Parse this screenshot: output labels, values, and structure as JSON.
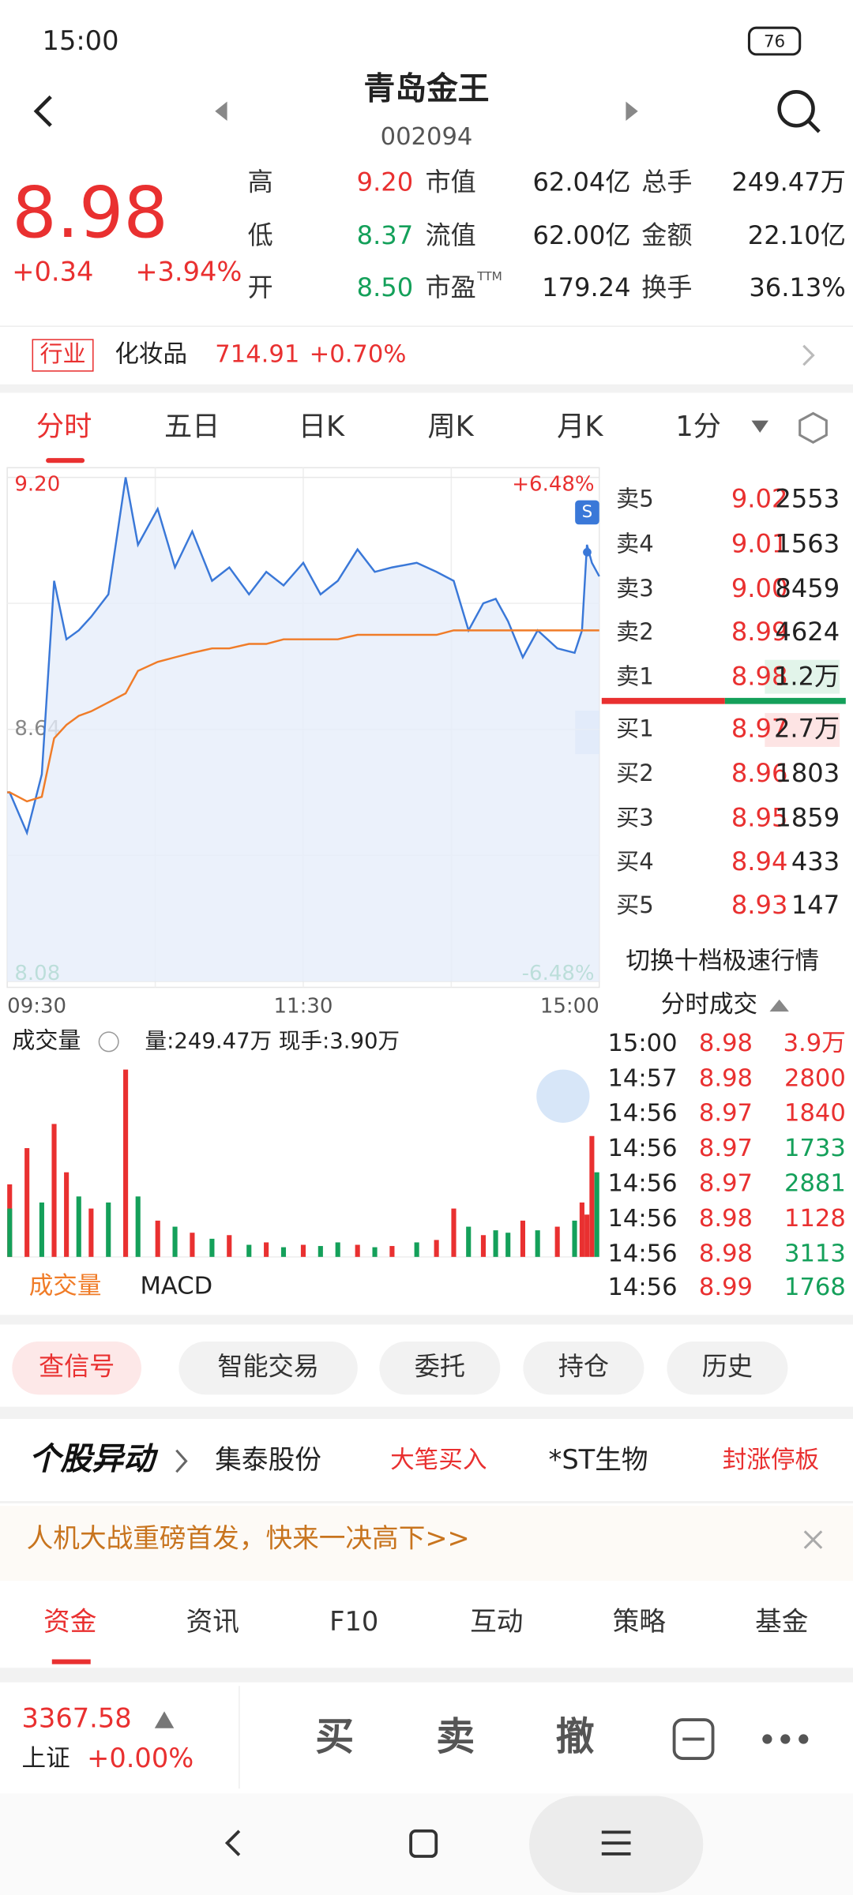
{
  "status_bar": {
    "time": "15:00",
    "battery": "76"
  },
  "header": {
    "title": "青岛金王",
    "code": "002094"
  },
  "quote": {
    "price": "8.98",
    "change": "+0.34",
    "change_pct": "+3.94%",
    "stats": [
      {
        "label": "高",
        "value": "9.20"
      },
      {
        "label": "市值",
        "value": "62.04亿"
      },
      {
        "label": "总手",
        "value": "249.47万"
      },
      {
        "label": "低",
        "value": "8.37"
      },
      {
        "label": "流值",
        "value": "62.00亿"
      },
      {
        "label": "金额",
        "value": "22.10亿"
      },
      {
        "label": "开",
        "value": "8.50"
      },
      {
        "label": "市盈",
        "value": "179.24"
      },
      {
        "label": "换手",
        "value": "36.13%"
      }
    ],
    "pe_superscript": "TTM"
  },
  "industry": {
    "tag": "行业",
    "name": "化妆品",
    "value": "714.91",
    "change_pct": "+0.70%"
  },
  "period_tabs": [
    "分时",
    "五日",
    "日K",
    "周K",
    "月K",
    "1分"
  ],
  "chart_data": [
    {
      "type": "line",
      "annotation": "S",
      "x": [
        0,
        1,
        8,
        14,
        19,
        24,
        29,
        34,
        41,
        48,
        53,
        61,
        68,
        75,
        83,
        90,
        98,
        105,
        112,
        120,
        127,
        134,
        142,
        149,
        156,
        166,
        174,
        181,
        187,
        193,
        198,
        203,
        209,
        215,
        223,
        230,
        233,
        235,
        237,
        240
      ],
      "xlim": [
        0,
        240
      ],
      "xticks": [
        {
          "value": 0,
          "label": "09:30"
        },
        {
          "value": 120,
          "label": "11:30"
        },
        {
          "value": 240,
          "label": "15:00"
        }
      ],
      "ylim": [
        8.08,
        9.2
      ],
      "yticks": [
        {
          "value": 9.2,
          "label": "9.20"
        },
        8.64,
        8.08
      ],
      "y2lim": [
        -6.48,
        6.48
      ],
      "y2ticks": [
        {
          "value": 6.48,
          "label": "+6.48%"
        },
        {
          "value": -6.48,
          "label": "-6.48%"
        }
      ],
      "series": [
        {
          "color": "#3a78d8",
          "values": [
            8.5,
            8.5,
            8.41,
            8.54,
            8.97,
            8.84,
            8.86,
            8.89,
            8.94,
            9.2,
            9.05,
            9.13,
            9.0,
            9.08,
            8.97,
            9.0,
            8.94,
            8.99,
            8.96,
            9.01,
            8.94,
            8.97,
            9.04,
            8.99,
            9.0,
            9.01,
            8.99,
            8.97,
            8.86,
            8.92,
            8.93,
            8.88,
            8.8,
            8.86,
            8.82,
            8.81,
            8.86,
            9.05,
            9.01,
            8.98
          ]
        },
        {
          "color": "#f07c28",
          "values": [
            8.5,
            8.5,
            8.48,
            8.49,
            8.62,
            8.65,
            8.67,
            8.68,
            8.7,
            8.72,
            8.77,
            8.79,
            8.8,
            8.81,
            8.82,
            8.82,
            8.83,
            8.83,
            8.84,
            8.84,
            8.84,
            8.84,
            8.85,
            8.85,
            8.85,
            8.85,
            8.85,
            8.86,
            8.86,
            8.86,
            8.86,
            8.86,
            8.86,
            8.86,
            8.86,
            8.86,
            8.86,
            8.86,
            8.86,
            8.86
          ]
        }
      ]
    },
    {
      "type": "bar",
      "title": "成交量",
      "subtitle": "量:249.47万 现手:3.90万",
      "x": [
        0,
        1,
        8,
        14,
        19,
        24,
        29,
        34,
        41,
        48,
        53,
        61,
        68,
        75,
        83,
        90,
        98,
        105,
        112,
        120,
        127,
        134,
        142,
        149,
        156,
        166,
        174,
        181,
        187,
        193,
        198,
        203,
        209,
        215,
        223,
        230,
        233,
        235,
        237,
        240
      ],
      "xlim": [
        0,
        240
      ],
      "ylim": [
        0,
        160000
      ],
      "values": [
        60000,
        40000,
        90000,
        45000,
        110000,
        70000,
        50000,
        40000,
        45000,
        155000,
        50000,
        30000,
        25000,
        20000,
        15000,
        18000,
        10000,
        12000,
        8000,
        10000,
        9000,
        12000,
        10000,
        8000,
        9000,
        12000,
        14000,
        40000,
        25000,
        18000,
        22000,
        20000,
        30000,
        22000,
        25000,
        30000,
        45000,
        35000,
        100000,
        70000
      ],
      "colors": [
        "#e93030",
        "#14a05a",
        "#e93030",
        "#14a05a",
        "#e93030",
        "#e93030",
        "#14a05a",
        "#e93030",
        "#14a05a",
        "#e93030",
        "#14a05a",
        "#e93030",
        "#14a05a",
        "#e93030",
        "#14a05a",
        "#e93030",
        "#14a05a",
        "#e93030",
        "#14a05a",
        "#e93030",
        "#14a05a",
        "#14a05a",
        "#e93030",
        "#14a05a",
        "#e93030",
        "#14a05a",
        "#e93030",
        "#e93030",
        "#14a05a",
        "#e93030",
        "#14a05a",
        "#14a05a",
        "#e93030",
        "#14a05a",
        "#e93030",
        "#14a05a",
        "#e93030",
        "#e93030",
        "#e93030",
        "#14a05a"
      ]
    }
  ],
  "order_book": {
    "asks": [
      {
        "label": "卖5",
        "price": "9.02",
        "volume": "2553"
      },
      {
        "label": "卖4",
        "price": "9.01",
        "volume": "1563"
      },
      {
        "label": "卖3",
        "price": "9.00",
        "volume": "8459"
      },
      {
        "label": "卖2",
        "price": "8.99",
        "volume": "4624"
      },
      {
        "label": "卖1",
        "price": "8.98",
        "volume": "1.2万"
      }
    ],
    "bids": [
      {
        "label": "买1",
        "price": "8.97",
        "volume": "2.7万"
      },
      {
        "label": "买2",
        "price": "8.96",
        "volume": "1803"
      },
      {
        "label": "买3",
        "price": "8.95",
        "volume": "1859"
      },
      {
        "label": "买4",
        "price": "8.94",
        "volume": "433"
      },
      {
        "label": "买5",
        "price": "8.93",
        "volume": "147"
      }
    ],
    "switch": "切换十档极速行情"
  },
  "trades": {
    "title": "分时成交",
    "rows": [
      [
        "15:00",
        "8.98",
        "3.9万"
      ],
      [
        "14:57",
        "8.98",
        "2800"
      ],
      [
        "14:56",
        "8.97",
        "1840"
      ],
      [
        "14:56",
        "8.97",
        "1733"
      ],
      [
        "14:56",
        "8.97",
        "2881"
      ],
      [
        "14:56",
        "8.98",
        "1128"
      ],
      [
        "14:56",
        "8.98",
        "3113"
      ],
      [
        "14:56",
        "8.99",
        "1768"
      ]
    ],
    "volume_colors": [
      "#e93030",
      "#e93030",
      "#e93030",
      "#14a05a",
      "#14a05a",
      "#e93030",
      "#14a05a",
      "#14a05a"
    ]
  },
  "indicator_tabs": [
    "成交量",
    "MACD"
  ],
  "actions": [
    "查信号",
    "智能交易",
    "委托",
    "持仓",
    "历史"
  ],
  "alerts": {
    "title": "个股异动",
    "items": [
      {
        "stock": "集泰股份",
        "event": "大笔买入"
      },
      {
        "stock": "*ST生物",
        "event": "封涨停板"
      }
    ]
  },
  "banner": "人机大战重磅首发，快来一决高下>>",
  "info_tabs": [
    "资金",
    "资讯",
    "F10",
    "互动",
    "策略",
    "基金"
  ],
  "bottom_bar": {
    "index_value": "3367.58",
    "index_name": "上证",
    "index_change": "+0.00%",
    "buttons": [
      "买",
      "卖",
      "撤"
    ]
  }
}
